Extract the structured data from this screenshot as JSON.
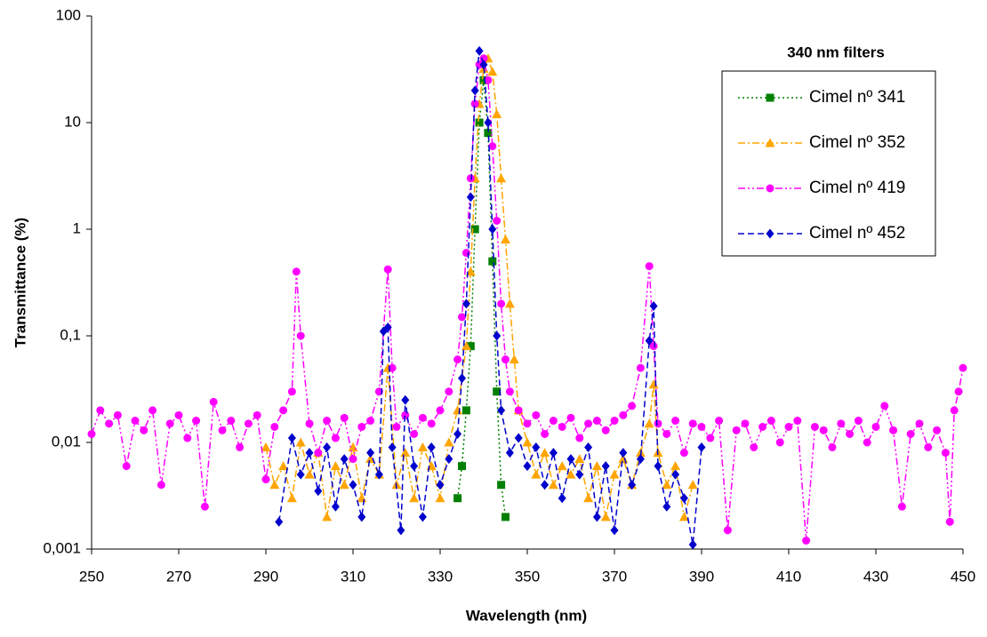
{
  "chart_data": {
    "type": "line",
    "log_y": true,
    "x_label": "Wavelength  (nm)",
    "y_label": "Transmittance (%)",
    "legend_title": "340 nm filters",
    "legend": "upper right",
    "xlim": [
      250,
      450
    ],
    "xticks": [
      250,
      270,
      290,
      310,
      330,
      350,
      370,
      390,
      410,
      430,
      450
    ],
    "ylim": [
      0.001,
      100
    ],
    "yticks": [
      {
        "value": 0.001,
        "label": "0,001"
      },
      {
        "value": 0.01,
        "label": "0,01"
      },
      {
        "value": 0.1,
        "label": "0,1"
      },
      1,
      10,
      100
    ],
    "series": [
      {
        "name": "Cimel nº 341",
        "color": "#008000",
        "marker": "square",
        "dash": "2,3",
        "x": [
          334,
          335,
          336,
          337,
          338,
          339,
          340,
          341,
          342,
          343,
          344,
          345
        ],
        "values": [
          0.003,
          0.006,
          0.02,
          0.08,
          1,
          10,
          25,
          8,
          0.5,
          0.03,
          0.004,
          0.002
        ]
      },
      {
        "name": "Cimel nº 352",
        "color": "#ffa500",
        "marker": "triangle",
        "dash": "8,3,2,3",
        "x": [
          290,
          292,
          294,
          296,
          298,
          300,
          302,
          304,
          306,
          308,
          310,
          312,
          314,
          316,
          318,
          320,
          322,
          324,
          326,
          328,
          330,
          332,
          334,
          336,
          337,
          338,
          339,
          340,
          341,
          342,
          343,
          344,
          345,
          346,
          347,
          348,
          350,
          352,
          354,
          356,
          358,
          360,
          362,
          364,
          366,
          368,
          370,
          372,
          374,
          376,
          378,
          379,
          380,
          382,
          384,
          386,
          388
        ],
        "values": [
          0.009,
          0.004,
          0.006,
          0.003,
          0.01,
          0.005,
          0.008,
          0.002,
          0.006,
          0.004,
          0.009,
          0.003,
          0.007,
          0.005,
          0.05,
          0.004,
          0.008,
          0.003,
          0.009,
          0.006,
          0.003,
          0.01,
          0.02,
          0.08,
          0.4,
          3,
          15,
          32,
          40,
          30,
          12,
          3,
          0.8,
          0.2,
          0.06,
          0.02,
          0.01,
          0.005,
          0.008,
          0.004,
          0.006,
          0.005,
          0.007,
          0.003,
          0.006,
          0.002,
          0.005,
          0.007,
          0.004,
          0.008,
          0.015,
          0.035,
          0.008,
          0.004,
          0.006,
          0.002,
          0.004
        ]
      },
      {
        "name": "Cimel nº 419",
        "color": "#ff00ff",
        "marker": "circle",
        "dash": "8,3,2,3,2,3",
        "x": [
          250,
          252,
          254,
          256,
          258,
          260,
          262,
          264,
          266,
          268,
          270,
          272,
          274,
          276,
          278,
          280,
          282,
          284,
          286,
          288,
          290,
          292,
          294,
          296,
          297,
          298,
          300,
          302,
          304,
          306,
          308,
          310,
          312,
          314,
          316,
          318,
          319,
          320,
          322,
          324,
          326,
          328,
          330,
          332,
          334,
          335,
          336,
          337,
          338,
          339,
          340,
          341,
          342,
          343,
          344,
          345,
          346,
          348,
          350,
          352,
          354,
          356,
          358,
          360,
          362,
          364,
          366,
          368,
          370,
          372,
          374,
          376,
          378,
          379,
          380,
          382,
          384,
          386,
          388,
          390,
          392,
          394,
          396,
          398,
          400,
          402,
          404,
          406,
          408,
          410,
          412,
          414,
          416,
          418,
          420,
          422,
          424,
          426,
          428,
          430,
          432,
          434,
          436,
          438,
          440,
          442,
          444,
          446,
          447,
          448,
          449,
          450
        ],
        "values": [
          0.012,
          0.02,
          0.015,
          0.018,
          0.006,
          0.016,
          0.013,
          0.02,
          0.004,
          0.015,
          0.018,
          0.011,
          0.016,
          0.0025,
          0.024,
          0.013,
          0.016,
          0.009,
          0.015,
          0.018,
          0.0045,
          0.014,
          0.02,
          0.03,
          0.4,
          0.1,
          0.015,
          0.008,
          0.016,
          0.011,
          0.017,
          0.007,
          0.014,
          0.016,
          0.03,
          0.42,
          0.05,
          0.014,
          0.018,
          0.012,
          0.017,
          0.015,
          0.02,
          0.03,
          0.06,
          0.15,
          0.6,
          3,
          15,
          35,
          40,
          25,
          6,
          1.2,
          0.2,
          0.06,
          0.03,
          0.02,
          0.015,
          0.018,
          0.012,
          0.016,
          0.014,
          0.017,
          0.011,
          0.015,
          0.016,
          0.013,
          0.016,
          0.018,
          0.022,
          0.05,
          0.45,
          0.08,
          0.015,
          0.012,
          0.016,
          0.008,
          0.015,
          0.014,
          0.011,
          0.016,
          0.0015,
          0.013,
          0.015,
          0.009,
          0.014,
          0.016,
          0.01,
          0.014,
          0.016,
          0.0012,
          0.014,
          0.013,
          0.009,
          0.015,
          0.012,
          0.016,
          0.01,
          0.014,
          0.022,
          0.013,
          0.0025,
          0.012,
          0.015,
          0.009,
          0.013,
          0.008,
          0.0018,
          0.02,
          0.03,
          0.05
        ]
      },
      {
        "name": "Cimel nº 452",
        "color": "#0000cd",
        "marker": "diamond",
        "dash": "7,4",
        "x": [
          293,
          296,
          298,
          300,
          302,
          304,
          306,
          308,
          310,
          312,
          314,
          316,
          317,
          318,
          319,
          321,
          322,
          324,
          326,
          328,
          330,
          332,
          334,
          335,
          336,
          337,
          338,
          339,
          340,
          341,
          342,
          343,
          344,
          346,
          348,
          350,
          352,
          354,
          356,
          358,
          360,
          362,
          364,
          366,
          368,
          370,
          372,
          374,
          376,
          378,
          379,
          380,
          382,
          384,
          386,
          388,
          390
        ],
        "values": [
          0.0018,
          0.011,
          0.005,
          0.008,
          0.0035,
          0.009,
          0.0025,
          0.007,
          0.004,
          0.002,
          0.008,
          0.005,
          0.11,
          0.12,
          0.009,
          0.0015,
          0.025,
          0.006,
          0.002,
          0.009,
          0.004,
          0.007,
          0.012,
          0.04,
          0.2,
          2,
          20,
          47,
          35,
          10,
          1,
          0.1,
          0.02,
          0.008,
          0.011,
          0.006,
          0.009,
          0.004,
          0.008,
          0.003,
          0.007,
          0.005,
          0.009,
          0.002,
          0.006,
          0.0015,
          0.008,
          0.004,
          0.007,
          0.09,
          0.19,
          0.006,
          0.0025,
          0.005,
          0.003,
          0.0011,
          0.009
        ]
      }
    ]
  }
}
